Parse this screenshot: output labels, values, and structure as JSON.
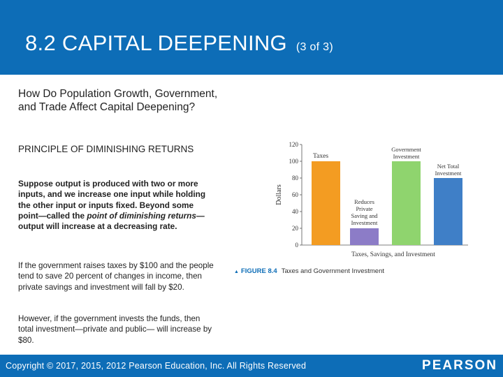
{
  "header": {
    "title": "8.2 CAPITAL DEEPENING",
    "subtitle": "(3 of 3)",
    "background_color": "#0d6db7"
  },
  "content": {
    "question": "How Do Population Growth, Government, and Trade Affect Capital Deepening?",
    "principle_heading": "PRINCIPLE OF DIMINISHING RETURNS",
    "principle_text_part1": "Suppose output is produced with two or more inputs, and we increase one input while holding the other input or inputs fixed. Beyond some point—called the ",
    "principle_text_italic": "point of diminishing returns",
    "principle_text_part2": "—output will increase at a decreasing rate.",
    "taxes_paragraph": "If the government raises taxes by $100 and the people tend to save 20 percent of changes in income, then private savings and investment will fall by $20.",
    "investment_paragraph": "However, if the government invests the funds, then total investment—private and public— will increase by $80."
  },
  "figure": {
    "label": "FIGURE 8.4",
    "caption": "Taxes and Government Investment"
  },
  "chart_data": {
    "type": "bar",
    "categories": [
      "Taxes",
      "Reduces Private Saving and Investment",
      "Government Investment",
      "Net Total Investment"
    ],
    "category_lines": [
      [
        "Taxes"
      ],
      [
        "Reduces",
        "Private",
        "Saving and",
        "Investment"
      ],
      [
        "Government",
        "Investment"
      ],
      [
        "Net Total",
        "Investment"
      ]
    ],
    "values": [
      100,
      20,
      100,
      80
    ],
    "colors": [
      "#f39c22",
      "#8c7cc7",
      "#8fd46e",
      "#3f7fc7"
    ],
    "ylabel": "Dollars",
    "xlabel": "Taxes, Savings, and Investment",
    "ylim": [
      0,
      120
    ],
    "yticks": [
      0,
      20,
      40,
      60,
      80,
      100,
      120
    ],
    "ytick_labels": [
      "0",
      "20",
      "40",
      "60",
      "80",
      "100",
      "120"
    ]
  },
  "footer": {
    "copyright": "Copyright © 2017, 2015, 2012 Pearson Education, Inc. All Rights Reserved",
    "logo": "PEARSON"
  }
}
